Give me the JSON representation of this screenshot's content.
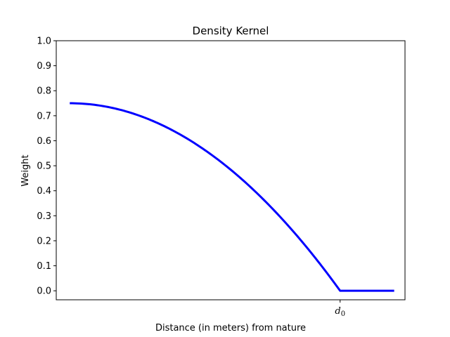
{
  "chart_data": {
    "type": "line",
    "title": "Density Kernel",
    "xlabel": "Distance (in meters) from nature",
    "ylabel": "Weight",
    "x_ticks": [
      {
        "label_main": "d",
        "label_sub": "0",
        "x": 1.0
      }
    ],
    "y_ticks": [
      "0.0",
      "0.1",
      "0.2",
      "0.3",
      "0.4",
      "0.5",
      "0.6",
      "0.7",
      "0.8",
      "0.9",
      "1.0"
    ],
    "xlim": [
      -0.05,
      1.24
    ],
    "ylim": [
      -0.036,
      1.0
    ],
    "grid": false,
    "series": [
      {
        "color": "#0000ff",
        "kernel": "epanechnikov",
        "peak": 0.75,
        "x": [
          0.0,
          0.1,
          0.2,
          0.3,
          0.4,
          0.5,
          0.6,
          0.7,
          0.8,
          0.9,
          1.0,
          1.2
        ],
        "y": [
          0.75,
          0.7425,
          0.72,
          0.6825,
          0.63,
          0.5625,
          0.48,
          0.3825,
          0.27,
          0.1425,
          0.0,
          0.0
        ]
      }
    ]
  }
}
